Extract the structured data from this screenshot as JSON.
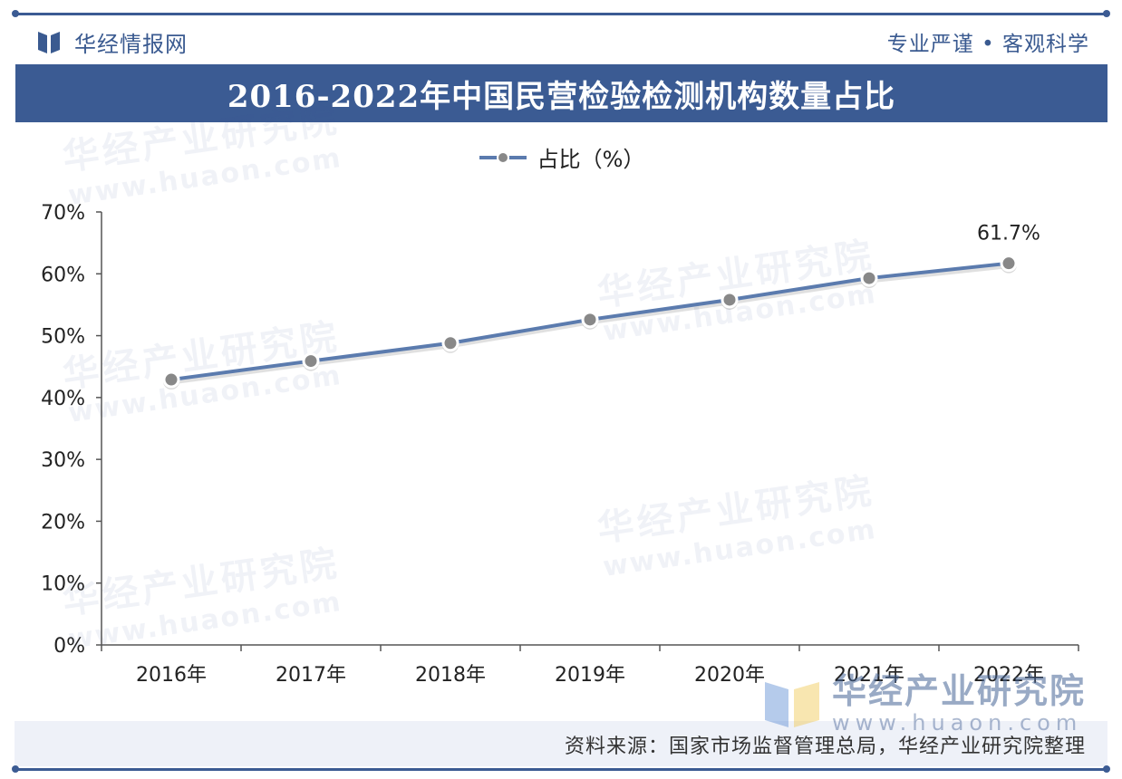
{
  "header": {
    "brand_name": "华经情报网",
    "slogan": "专业严谨 • 客观科学"
  },
  "title": "2016-2022年中国民营检验检测机构数量占比",
  "source": "资料来源：国家市场监督管理总局，华经产业研究院整理",
  "watermark": {
    "name": "华经产业研究院",
    "url": "www.huaon.com"
  },
  "corner_logo": {
    "name": "华经产业研究院",
    "url": "www.huaon.com"
  },
  "colors": {
    "primary": "#3b5b93",
    "line": "#5b7bae",
    "marker": "#888888",
    "axis": "#555555"
  },
  "chart_data": {
    "type": "line",
    "categories": [
      "2016年",
      "2017年",
      "2018年",
      "2019年",
      "2020年",
      "2021年",
      "2022年"
    ],
    "series": [
      {
        "name": "占比（%）",
        "values": [
          42.9,
          45.9,
          48.8,
          52.6,
          55.8,
          59.3,
          61.7
        ]
      }
    ],
    "data_labels": [
      {
        "index": 6,
        "text": "61.7%"
      }
    ],
    "ylim": [
      0,
      70
    ],
    "yticks": [
      "0%",
      "10%",
      "20%",
      "30%",
      "40%",
      "50%",
      "60%",
      "70%"
    ],
    "grid": false,
    "legend_position": "top-center"
  }
}
